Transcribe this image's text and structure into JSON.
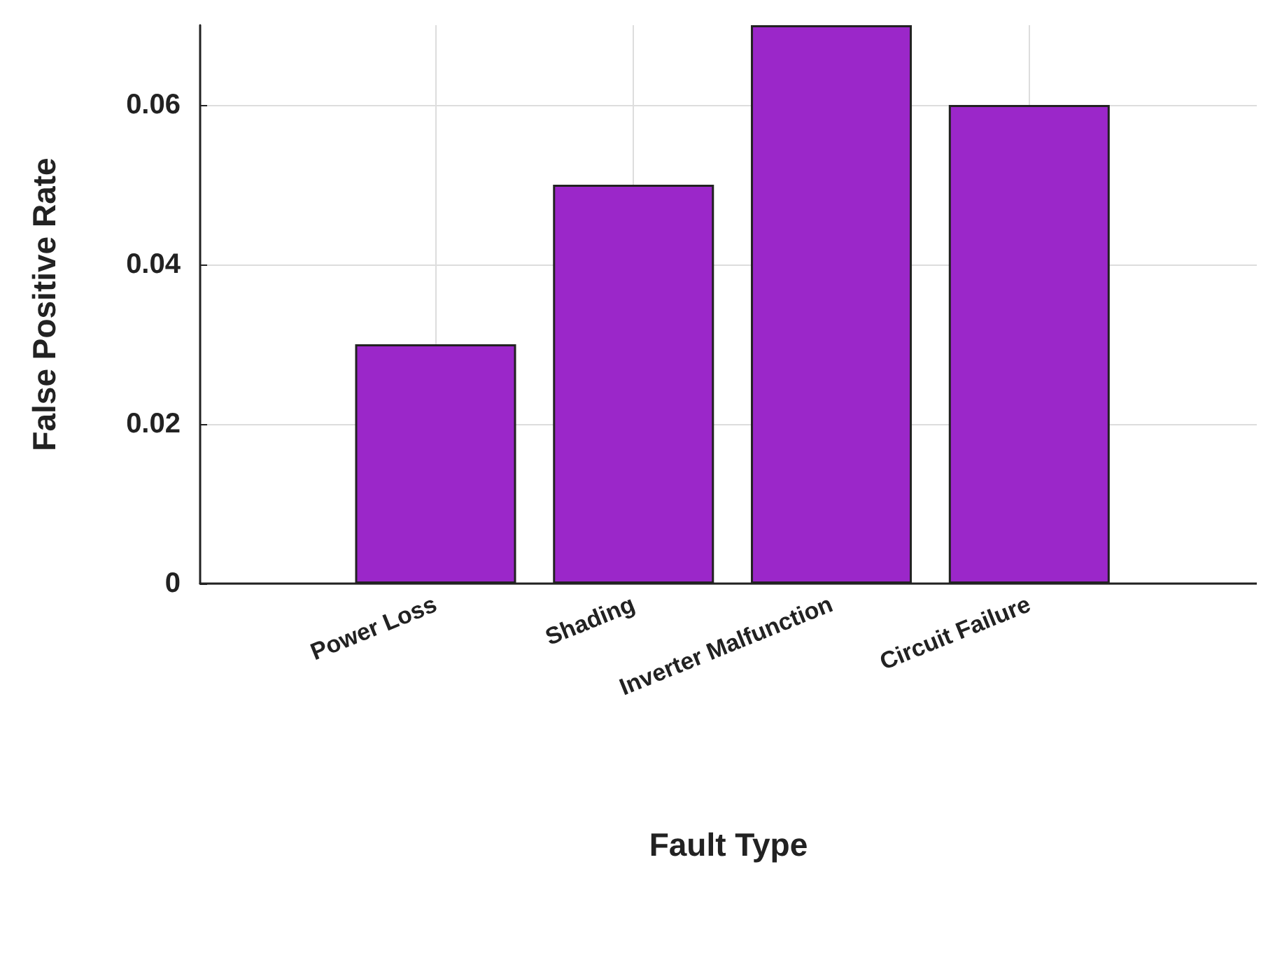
{
  "chart_data": {
    "type": "bar",
    "xlabel": "Fault Type",
    "ylabel": "False Positive Rate",
    "categories": [
      "Power Loss",
      "Shading",
      "Inverter Malfunction",
      "Circuit Failure"
    ],
    "values": [
      0.03,
      0.05,
      0.07,
      0.06
    ],
    "color": "#9b27c9",
    "ylim": [
      0,
      0.07
    ],
    "yticks": [
      0,
      0.02,
      0.04,
      0.06
    ],
    "grid": true
  }
}
